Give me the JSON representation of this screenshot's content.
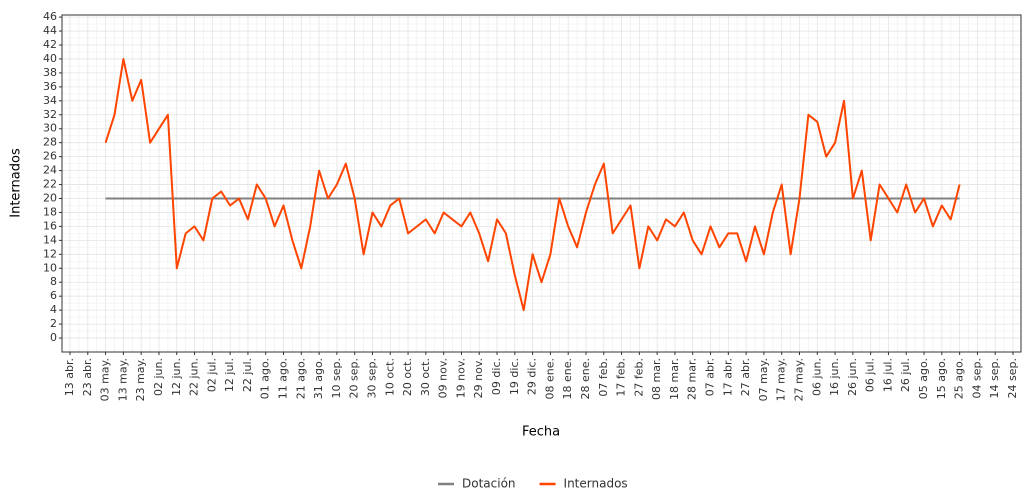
{
  "chart_data": {
    "type": "line",
    "x_label": "Fecha",
    "y_label": "Internados",
    "categories": [
      "13 abr.",
      null,
      "23 abr.",
      null,
      "03 may.",
      null,
      "13 may.",
      null,
      "23 may.",
      null,
      "02 jun.",
      null,
      "12 jun.",
      null,
      "22 jun.",
      null,
      "02 jul.",
      null,
      "12 jul.",
      null,
      "22 jul.",
      null,
      "01 ago.",
      null,
      "11 ago.",
      null,
      "21 ago.",
      null,
      "31 ago.",
      null,
      "10 sep.",
      null,
      "20 sep.",
      null,
      "30 sep.",
      null,
      "10 oct.",
      null,
      "20 oct.",
      null,
      "30 oct.",
      null,
      "09 nov.",
      null,
      "19 nov.",
      null,
      "29 nov.",
      null,
      "09 dic.",
      null,
      "19 dic.",
      null,
      "29 dic.",
      null,
      "08 ene.",
      null,
      "18 ene.",
      null,
      "28 ene.",
      null,
      "07 feb.",
      null,
      "17 feb.",
      null,
      "27 feb.",
      null,
      "08 mar.",
      null,
      "18 mar.",
      null,
      "28 mar.",
      null,
      "07 abr.",
      null,
      "17 abr.",
      null,
      "27 abr.",
      null,
      "07 may.",
      null,
      "17 may.",
      null,
      "27 may.",
      null,
      "06 jun.",
      null,
      "16 jun.",
      null,
      "26 jun.",
      null,
      "06 jul.",
      null,
      "16 jul.",
      null,
      "26 jul.",
      null,
      "05 ago.",
      null,
      "15 ago.",
      null,
      "25 ago.",
      null,
      "04 sep.",
      null,
      "14 sep.",
      null,
      "24 sep."
    ],
    "series": [
      {
        "name": "Dotación",
        "color": "#808080",
        "values": [
          null,
          null,
          null,
          null,
          20,
          20,
          20,
          20,
          20,
          20,
          20,
          20,
          20,
          20,
          20,
          20,
          20,
          20,
          20,
          20,
          20,
          20,
          20,
          20,
          20,
          20,
          20,
          20,
          20,
          20,
          20,
          20,
          20,
          20,
          20,
          20,
          20,
          20,
          20,
          20,
          20,
          20,
          20,
          20,
          20,
          20,
          20,
          20,
          20,
          20,
          20,
          20,
          20,
          20,
          20,
          20,
          20,
          20,
          20,
          20,
          20,
          20,
          20,
          20,
          20,
          20,
          20,
          20,
          20,
          20,
          20,
          20,
          20,
          20,
          20,
          20,
          20,
          20,
          20,
          20,
          20,
          20,
          20,
          20,
          20,
          20,
          20,
          20,
          20,
          20,
          20,
          20,
          20,
          20,
          20,
          20,
          20,
          20,
          20,
          20,
          20,
          null,
          null,
          null,
          null,
          null,
          null
        ]
      },
      {
        "name": "Internados",
        "color": "#ff4500",
        "values": [
          null,
          null,
          null,
          null,
          28,
          32,
          40,
          34,
          37,
          28,
          30,
          32,
          10,
          15,
          16,
          14,
          20,
          21,
          19,
          20,
          17,
          22,
          20,
          16,
          19,
          14,
          10,
          16,
          24,
          20,
          22,
          25,
          20,
          12,
          18,
          16,
          19,
          20,
          15,
          16,
          17,
          15,
          18,
          17,
          16,
          18,
          15,
          11,
          17,
          15,
          9,
          4,
          12,
          8,
          12,
          20,
          16,
          13,
          18,
          22,
          25,
          15,
          17,
          19,
          10,
          16,
          14,
          17,
          16,
          18,
          14,
          12,
          16,
          13,
          15,
          15,
          11,
          16,
          12,
          18,
          22,
          12,
          20,
          32,
          31,
          26,
          28,
          34,
          20,
          24,
          14,
          22,
          20,
          18,
          22,
          18,
          20,
          16,
          19,
          17,
          22,
          null,
          null,
          null,
          null,
          null,
          null
        ]
      }
    ],
    "ylim": [
      -2,
      46.3
    ],
    "yticks": [
      0,
      2,
      4,
      6,
      8,
      10,
      12,
      14,
      16,
      18,
      20,
      22,
      24,
      26,
      28,
      30,
      32,
      34,
      36,
      38,
      40,
      42,
      44,
      46
    ],
    "grid": true,
    "legend": "bottom"
  }
}
